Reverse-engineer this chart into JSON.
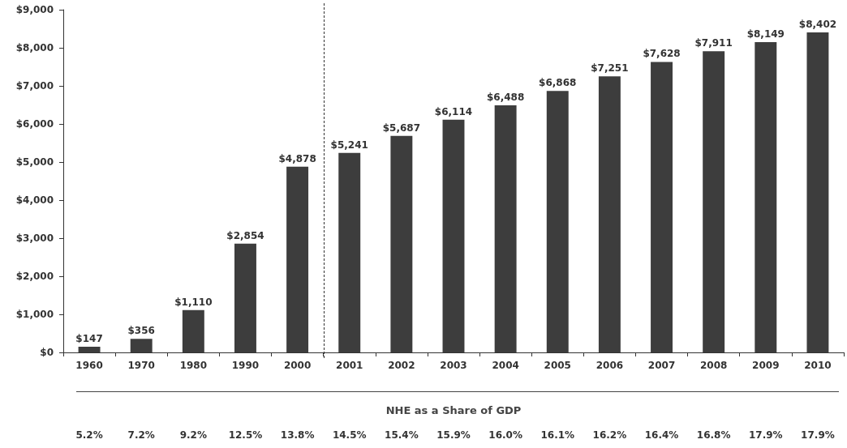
{
  "chart_data": {
    "type": "bar",
    "categories": [
      "1960",
      "1970",
      "1980",
      "1990",
      "2000",
      "2001",
      "2002",
      "2003",
      "2004",
      "2005",
      "2006",
      "2007",
      "2008",
      "2009",
      "2010"
    ],
    "values": [
      147,
      356,
      1110,
      2854,
      4878,
      5241,
      5687,
      6114,
      6488,
      6868,
      7251,
      7628,
      7911,
      8149,
      8402
    ],
    "color": "#3d3d3d",
    "value_labels": [
      "$147",
      "$356",
      "$1,110",
      "$2,854",
      "$4,878",
      "$5,241",
      "$5,687",
      "$6,114",
      "$6,488",
      "$6,868",
      "$7,251",
      "$7,628",
      "$7,911",
      "$8,149",
      "$8,402"
    ],
    "ylim": [
      0,
      9000
    ],
    "yticks": [
      {
        "value": 0,
        "label": "$0"
      },
      {
        "value": 1000,
        "label": "$1,000"
      },
      {
        "value": 2000,
        "label": "$2,000"
      },
      {
        "value": 3000,
        "label": "$3,000"
      },
      {
        "value": 4000,
        "label": "$4,000"
      },
      {
        "value": 5000,
        "label": "$5,000"
      },
      {
        "value": 6000,
        "label": "$6,000"
      },
      {
        "value": 7000,
        "label": "$7,000"
      },
      {
        "value": 8000,
        "label": "$8,000"
      },
      {
        "value": 9000,
        "label": "$9,000"
      }
    ],
    "grid": false,
    "annotations": [
      "NHE as a Share of GDP",
      "5.2%",
      "7.2%",
      "9.2%",
      "12.5%",
      "13.8%",
      "14.5%",
      "15.4%",
      "15.9%",
      "16.0%",
      "16.1%",
      "16.2%",
      "16.4%",
      "16.8%",
      "17.9%",
      "17.9%"
    ]
  }
}
